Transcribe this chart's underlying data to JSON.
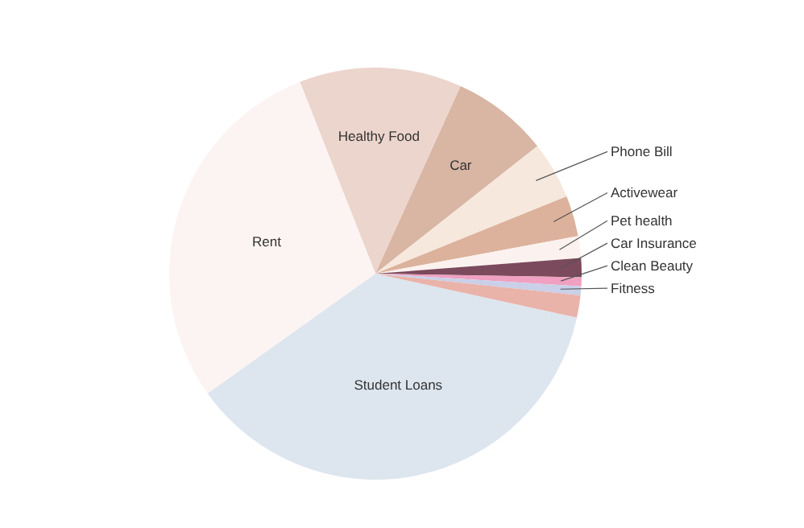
{
  "chart_data": {
    "type": "pie",
    "categories": [
      "Healthy Food",
      "Car",
      "Phone Bill",
      "Activewear",
      "Pet health",
      "Car Insurance",
      "Clean Beauty",
      "Fitness",
      null,
      "Student Loans",
      "Rent"
    ],
    "values": [
      12.75,
      7.6,
      4.5,
      3.2,
      1.7,
      1.5,
      0.7,
      0.7,
      1.75,
      36.7,
      28.9
    ],
    "colors": [
      "#ecd5cc",
      "#d9b5a3",
      "#f6e8dd",
      "#dcb29c",
      "#fbf2ef",
      "#7b4a5c",
      "#f0a0c0",
      "#c9d0e8",
      "#e9b3aa",
      "#dde5ee",
      "#fcf4f2"
    ]
  }
}
